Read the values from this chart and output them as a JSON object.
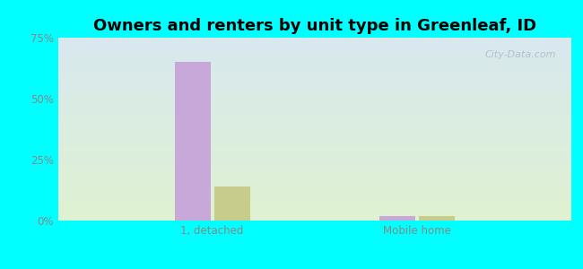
{
  "title": "Owners and renters by unit type in Greenleaf, ID",
  "title_fontsize": 13,
  "categories": [
    "1, detached",
    "Mobile home"
  ],
  "owner_values": [
    65.0,
    1.8
  ],
  "renter_values": [
    14.0,
    1.8
  ],
  "owner_color": "#c8a8d8",
  "renter_color": "#c8cc8a",
  "ylim": [
    0,
    75
  ],
  "yticks": [
    0,
    25,
    50,
    75
  ],
  "yticklabels": [
    "0%",
    "25%",
    "50%",
    "75%"
  ],
  "bar_width": 0.28,
  "bg_color_top": "#d8e8f0",
  "bg_color_bottom": "#dff2d0",
  "watermark": "City-Data.com",
  "outer_bg": "#00ffff",
  "tick_color": "#888888",
  "grid_color": "#e0e8e0"
}
